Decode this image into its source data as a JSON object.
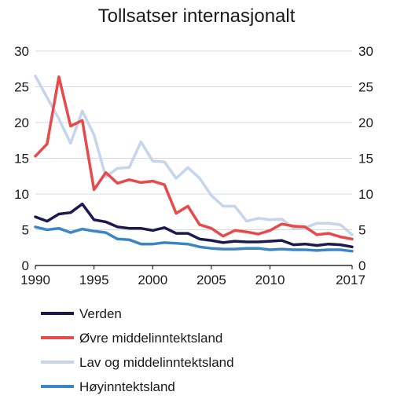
{
  "chart_data": {
    "type": "line",
    "title": "Tollsatser internasjonalt",
    "xlabel": "",
    "ylabel": "",
    "xlim": [
      1990,
      2017
    ],
    "ylim": [
      0,
      30
    ],
    "xticks": [
      1990,
      1995,
      2000,
      2005,
      2010,
      2017
    ],
    "yticks": [
      0,
      5,
      10,
      15,
      20,
      25,
      30
    ],
    "grid": "horizontal",
    "legend": "bottom",
    "series": [
      {
        "name": "Verden",
        "color": "#1b1a4f",
        "x": [
          1990,
          1991,
          1992,
          1993,
          1994,
          1995,
          1996,
          1997,
          1998,
          1999,
          2000,
          2001,
          2002,
          2003,
          2004,
          2005,
          2006,
          2007,
          2008,
          2009,
          2010,
          2011,
          2012,
          2013,
          2014,
          2015,
          2016,
          2017
        ],
        "values": [
          6.8,
          6.2,
          7.2,
          7.4,
          8.6,
          6.4,
          6.1,
          5.4,
          5.2,
          5.2,
          4.9,
          5.3,
          4.5,
          4.5,
          3.7,
          3.5,
          3.2,
          3.4,
          3.3,
          3.3,
          3.4,
          3.5,
          2.9,
          3.0,
          2.8,
          3.0,
          2.9,
          2.6
        ]
      },
      {
        "name": "Øvre middelinntektsland",
        "color": "#e8494a",
        "x": [
          1990,
          1991,
          1992,
          1993,
          1994,
          1995,
          1996,
          1997,
          1998,
          1999,
          2000,
          2001,
          2002,
          2003,
          2004,
          2005,
          2006,
          2007,
          2008,
          2009,
          2010,
          2011,
          2012,
          2013,
          2014,
          2015,
          2016,
          2017
        ],
        "values": [
          15.3,
          17.0,
          26.4,
          19.5,
          20.3,
          10.6,
          13.0,
          11.5,
          12.0,
          11.6,
          11.8,
          11.3,
          7.3,
          8.3,
          5.7,
          5.2,
          4.1,
          4.9,
          4.7,
          4.4,
          4.9,
          5.8,
          5.5,
          5.4,
          4.3,
          4.5,
          4.0,
          3.7
        ]
      },
      {
        "name": "Lav og middelinntektsland",
        "color": "#c5d5ec",
        "x": [
          1990,
          1991,
          1992,
          1993,
          1994,
          1995,
          1996,
          1997,
          1998,
          1999,
          2000,
          2001,
          2002,
          2003,
          2004,
          2005,
          2006,
          2007,
          2008,
          2009,
          2010,
          2011,
          2012,
          2013,
          2014,
          2015,
          2016,
          2017
        ],
        "values": [
          26.5,
          23.5,
          20.5,
          17.1,
          21.6,
          18.3,
          12.4,
          13.6,
          13.7,
          17.3,
          14.6,
          14.5,
          12.2,
          13.7,
          12.2,
          9.8,
          8.3,
          8.3,
          6.2,
          6.6,
          6.4,
          6.5,
          5.2,
          5.3,
          5.9,
          5.9,
          5.7,
          4.3
        ]
      },
      {
        "name": "Høyinntektsland",
        "color": "#3d86c6",
        "x": [
          1990,
          1991,
          1992,
          1993,
          1994,
          1995,
          1996,
          1997,
          1998,
          1999,
          2000,
          2001,
          2002,
          2003,
          2004,
          2005,
          2006,
          2007,
          2008,
          2009,
          2010,
          2011,
          2012,
          2013,
          2014,
          2015,
          2016,
          2017
        ],
        "values": [
          5.4,
          5.0,
          5.2,
          4.6,
          5.1,
          4.8,
          4.6,
          3.7,
          3.6,
          3.0,
          3.0,
          3.2,
          3.1,
          3.0,
          2.6,
          2.4,
          2.3,
          2.3,
          2.4,
          2.4,
          2.2,
          2.3,
          2.2,
          2.2,
          2.1,
          2.2,
          2.2,
          2.0
        ]
      }
    ]
  }
}
